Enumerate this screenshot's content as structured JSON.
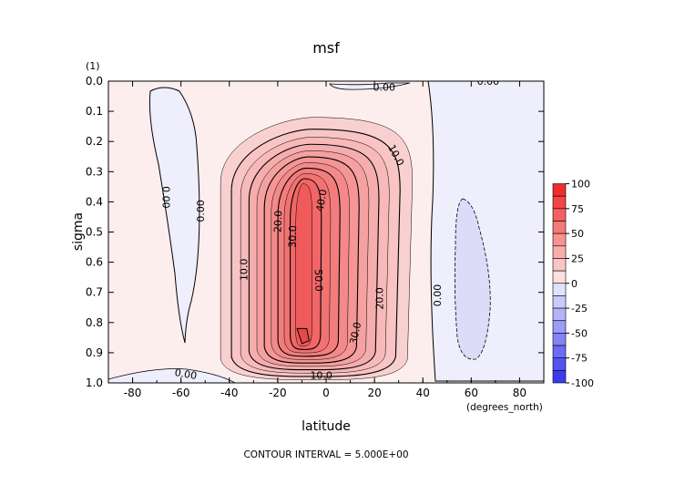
{
  "chart_data": {
    "type": "contour",
    "title": "msf",
    "xlabel": "latitude",
    "ylabel": "sigma",
    "x_units": "(degrees_north)",
    "y_units": "(1)",
    "xlim": [
      -90,
      90
    ],
    "ylim": [
      0.0,
      1.0
    ],
    "y_inverted": true,
    "x_ticks": [
      -80,
      -60,
      -40,
      -20,
      0,
      20,
      40,
      60,
      80
    ],
    "x_tick_labels": [
      "-80",
      "-60",
      "-40",
      "-20",
      "0",
      "20",
      "40",
      "60",
      "80"
    ],
    "y_ticks": [
      0.0,
      0.1,
      0.2,
      0.3,
      0.4,
      0.5,
      0.6,
      0.7,
      0.8,
      0.9,
      1.0
    ],
    "y_tick_labels": [
      "0.0",
      "0.1",
      "0.2",
      "0.3",
      "0.4",
      "0.5",
      "0.6",
      "0.7",
      "0.8",
      "0.9",
      "1.0"
    ],
    "contour_interval": 5.0,
    "footer": "CONTOUR INTERVAL = 5.000E+00",
    "colorbar": {
      "ticks": [
        100,
        75,
        50,
        25,
        0,
        -25,
        -50,
        -75,
        -100
      ],
      "tick_labels": [
        "100",
        "75",
        "50",
        "25",
        "0",
        "-25",
        "-50",
        "-75",
        "-100"
      ],
      "min": -100,
      "max": 100,
      "step": 12.5,
      "colors": {
        "positive": "#ee2020",
        "negative": "#3030ee",
        "neutral": "#ffffff"
      }
    },
    "field_features": {
      "northern_cell": {
        "center_lat": -5,
        "center_sigma": 0.7,
        "peak_value": 55
      },
      "southern_cell": {
        "center_lat": 60,
        "center_sigma": 0.55,
        "peak_value": -6
      },
      "northern_weak_cell": {
        "center_lat": -62,
        "center_sigma": 0.35,
        "peak_value": -3
      }
    },
    "contour_labels": [
      {
        "text": "10.0",
        "lat": 29,
        "sigma": 0.245,
        "rotate": 62
      },
      {
        "text": "40.0",
        "lat": -2,
        "sigma": 0.395,
        "rotate": -80
      },
      {
        "text": "20.0",
        "lat": -20,
        "sigma": 0.465,
        "rotate": -88
      },
      {
        "text": "30.0",
        "lat": -14,
        "sigma": 0.515,
        "rotate": -88
      },
      {
        "text": "50.0",
        "lat": -3,
        "sigma": 0.66,
        "rotate": 88
      },
      {
        "text": "10.0",
        "lat": -34,
        "sigma": 0.625,
        "rotate": -90
      },
      {
        "text": "20.0",
        "lat": 22,
        "sigma": 0.72,
        "rotate": -90
      },
      {
        "text": "30.0",
        "lat": 12,
        "sigma": 0.835,
        "rotate": -78
      },
      {
        "text": "10.0",
        "lat": -2,
        "sigma": 0.975,
        "rotate": 0
      },
      {
        "text": "0.00",
        "lat": -66,
        "sigma": 0.385,
        "rotate": 90
      },
      {
        "text": "0.00",
        "lat": -52,
        "sigma": 0.43,
        "rotate": -90
      },
      {
        "text": "0.00",
        "lat": 46,
        "sigma": 0.71,
        "rotate": -90
      },
      {
        "text": "0.00",
        "lat": -58,
        "sigma": 0.97,
        "rotate": 10
      },
      {
        "text": "0.00",
        "lat": 24,
        "sigma": 0.02,
        "rotate": 0
      },
      {
        "text": "0.00",
        "lat": 67,
        "sigma": 0.0,
        "rotate": 0
      }
    ]
  }
}
